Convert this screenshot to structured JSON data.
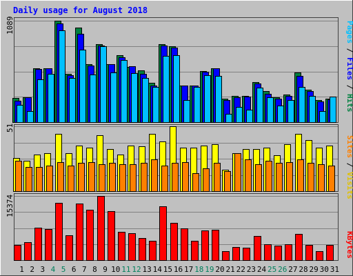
{
  "title": "Daily usage for August 2018",
  "chart_data": [
    {
      "type": "bar",
      "panel": "hits-files-pages",
      "top_label": "1089",
      "right_labels": [
        "Pages",
        " / ",
        "Files",
        " / ",
        "Hits"
      ],
      "ylim": [
        0,
        1089
      ],
      "grid": true,
      "categories": [
        "1",
        "2",
        "3",
        "4",
        "5",
        "6",
        "7",
        "8",
        "9",
        "10",
        "11",
        "12",
        "13",
        "14",
        "15",
        "16",
        "17",
        "18",
        "19",
        "20",
        "21",
        "22",
        "23",
        "24",
        "25",
        "26",
        "27",
        "28",
        "29",
        "30",
        "31"
      ],
      "series": [
        {
          "name": "Hits",
          "color": "#008040",
          "values": [
            260,
            265,
            580,
            580,
            1089,
            515,
            1015,
            620,
            835,
            620,
            720,
            595,
            555,
            420,
            835,
            815,
            395,
            395,
            545,
            580,
            250,
            280,
            280,
            430,
            330,
            265,
            300,
            530,
            350,
            235,
            255
          ]
        },
        {
          "name": "Files",
          "color": "#0000ff",
          "values": [
            230,
            265,
            570,
            575,
            1060,
            505,
            950,
            605,
            820,
            620,
            700,
            600,
            520,
            395,
            820,
            800,
            390,
            390,
            540,
            575,
            240,
            270,
            275,
            415,
            305,
            250,
            280,
            500,
            330,
            220,
            245
          ]
        },
        {
          "name": "Pages",
          "color": "#00c0ff",
          "values": [
            185,
            120,
            460,
            515,
            985,
            475,
            780,
            510,
            815,
            530,
            670,
            525,
            475,
            380,
            710,
            715,
            235,
            380,
            505,
            500,
            90,
            160,
            130,
            370,
            265,
            180,
            235,
            380,
            280,
            120,
            275
          ]
        }
      ]
    },
    {
      "type": "bar",
      "panel": "visits-sites",
      "top_label": "51",
      "right_labels": [
        "Sites",
        " / ",
        "Visits"
      ],
      "ylim": [
        0,
        51
      ],
      "grid": true,
      "categories": [
        "1",
        "2",
        "3",
        "4",
        "5",
        "6",
        "7",
        "8",
        "9",
        "10",
        "11",
        "12",
        "13",
        "14",
        "15",
        "16",
        "17",
        "18",
        "19",
        "20",
        "21",
        "22",
        "23",
        "24",
        "25",
        "26",
        "27",
        "28",
        "29",
        "30",
        "31"
      ],
      "series": [
        {
          "name": "Visits",
          "color": "#ffff00",
          "values": [
            26,
            24,
            29,
            30,
            45,
            30,
            36,
            34,
            44,
            33,
            29,
            36,
            35,
            45,
            39,
            51,
            34,
            34,
            36,
            37,
            17,
            30,
            33,
            33,
            34,
            28,
            37,
            45,
            40,
            34,
            36
          ]
        },
        {
          "name": "Sites",
          "color": "#ff8000",
          "values": [
            24,
            19,
            19,
            20,
            23,
            20,
            22,
            23,
            21,
            22,
            21,
            21,
            22,
            25,
            20,
            22,
            23,
            14,
            18,
            22,
            16,
            30,
            25,
            21,
            24,
            22,
            23,
            25,
            22,
            21,
            20
          ]
        }
      ]
    },
    {
      "type": "bar",
      "panel": "kbytes",
      "top_label": "15374",
      "right_labels": [
        "KBytes"
      ],
      "ylim": [
        0,
        15374
      ],
      "grid": true,
      "categories": [
        "1",
        "2",
        "3",
        "4",
        "5",
        "6",
        "7",
        "8",
        "9",
        "10",
        "11",
        "12",
        "13",
        "14",
        "15",
        "16",
        "17",
        "18",
        "19",
        "20",
        "21",
        "22",
        "23",
        "24",
        "25",
        "26",
        "27",
        "28",
        "29",
        "30",
        "31"
      ],
      "series": [
        {
          "name": "KBytes",
          "color": "#ff0000",
          "values": [
            3700,
            4300,
            7700,
            7500,
            13700,
            5900,
            13600,
            12000,
            15374,
            11800,
            6700,
            6400,
            5300,
            4600,
            12900,
            8900,
            7600,
            4700,
            7100,
            7300,
            2200,
            3200,
            2900,
            5800,
            3800,
            3400,
            3800,
            6200,
            3700,
            2200,
            3700
          ]
        }
      ]
    }
  ],
  "weekend_days": [
    "4",
    "5",
    "11",
    "12",
    "18",
    "19",
    "25",
    "26"
  ],
  "colors": {
    "background": "#c0c0c0",
    "title": "#0000ff",
    "label": "#000000",
    "grid": "#808080",
    "weekend_label": "#00805c",
    "bar_edge": "#000000"
  }
}
